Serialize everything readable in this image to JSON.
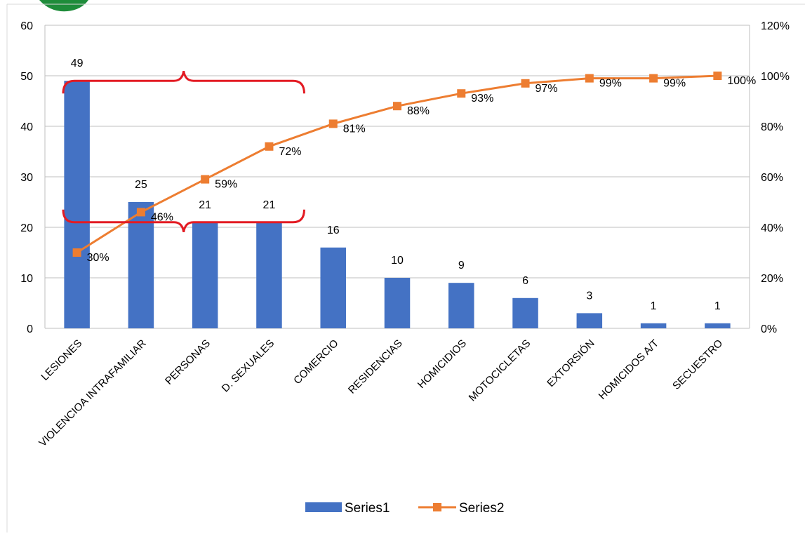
{
  "chart_data": {
    "type": "bar",
    "categories": [
      "LESIONES",
      "VIOLENCIOA INTRAFAMILIAR",
      "PERSONAS",
      "D. SEXUALES",
      "COMERCIO",
      "RESIDENCIAS",
      "HOMICIDIOS",
      "MOTOCICLETAS",
      "EXTORSIÓN",
      "HOMICIDOS A/T",
      "SECUESTRO"
    ],
    "series": [
      {
        "name": "Series1",
        "type": "bar",
        "axis": "left",
        "color": "#4472C4",
        "values": [
          49,
          25,
          21,
          21,
          16,
          10,
          9,
          6,
          3,
          1,
          1
        ],
        "labels": [
          "49",
          "25",
          "21",
          "21",
          "16",
          "10",
          "9",
          "6",
          "3",
          "1",
          "1"
        ]
      },
      {
        "name": "Series2",
        "type": "line",
        "axis": "right",
        "color": "#ED7D31",
        "values": [
          0.3,
          0.46,
          0.59,
          0.72,
          0.81,
          0.88,
          0.93,
          0.97,
          0.99,
          0.99,
          1.0
        ],
        "labels": [
          "30%",
          "46%",
          "59%",
          "72%",
          "81%",
          "88%",
          "93%",
          "97%",
          "99%",
          "99%",
          "100%"
        ]
      }
    ],
    "y_left": {
      "ylim": [
        0,
        60
      ],
      "ticks": [
        0,
        10,
        20,
        30,
        40,
        50,
        60
      ],
      "tick_labels": [
        "0",
        "10",
        "20",
        "30",
        "40",
        "50",
        "60"
      ]
    },
    "y_right": {
      "ylim": [
        0,
        1.2
      ],
      "ticks": [
        0,
        0.2,
        0.4,
        0.6,
        0.8,
        1.0,
        1.2
      ],
      "tick_labels": [
        "0%",
        "20%",
        "40%",
        "60%",
        "80%",
        "100%",
        "120%"
      ]
    },
    "grid": true,
    "grid_color": "#bfbfbf",
    "legend_position": "bottom",
    "annotation": {
      "type": "brace",
      "color": "#e31b23",
      "spans_categories": [
        "LESIONES",
        "D. SEXUALES"
      ],
      "top_brace_value": 49,
      "bottom_brace_value": 21
    },
    "logo_color": "#1e8c3a"
  }
}
